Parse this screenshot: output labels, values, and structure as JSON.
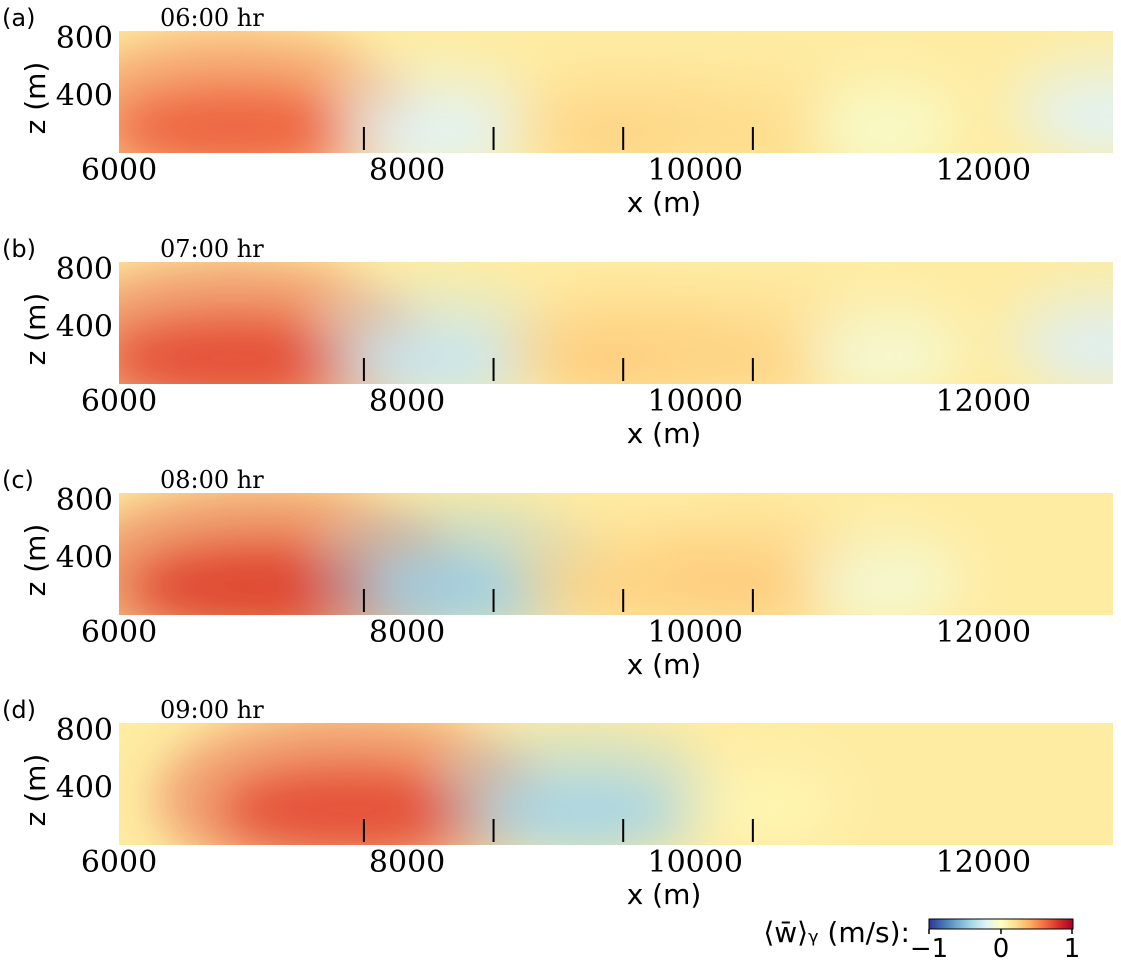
{
  "chart_data": [
    {
      "type": "heatmap",
      "panel": "(a)",
      "time": "06:00 hr",
      "xlabel": "x (m)",
      "ylabel": "z (m)",
      "xlim": [
        6000,
        12900
      ],
      "ylim": [
        0,
        850
      ],
      "xticks": [
        6000,
        8000,
        10000,
        12000
      ],
      "yticks": [
        400,
        800
      ],
      "markers_x": [
        7700,
        8600,
        9500,
        10400
      ],
      "features": [
        {
          "x": 6800,
          "z": 180,
          "w": 0.65
        },
        {
          "x": 8200,
          "z": 150,
          "w": -0.2
        },
        {
          "x": 9500,
          "z": 130,
          "w": 0.25
        },
        {
          "x": 10400,
          "z": 130,
          "w": 0.22
        },
        {
          "x": 11300,
          "z": 150,
          "w": -0.05
        },
        {
          "x": 12900,
          "z": 250,
          "w": -0.2
        }
      ]
    },
    {
      "type": "heatmap",
      "panel": "(b)",
      "time": "07:00 hr",
      "xlabel": "x (m)",
      "ylabel": "z (m)",
      "xlim": [
        6000,
        12900
      ],
      "ylim": [
        0,
        850
      ],
      "xticks": [
        6000,
        8000,
        10000,
        12000
      ],
      "yticks": [
        400,
        800
      ],
      "markers_x": [
        7700,
        8600,
        9500,
        10400
      ],
      "features": [
        {
          "x": 6800,
          "z": 180,
          "w": 0.72
        },
        {
          "x": 8200,
          "z": 180,
          "w": -0.3
        },
        {
          "x": 9500,
          "z": 180,
          "w": 0.28
        },
        {
          "x": 10400,
          "z": 180,
          "w": 0.25
        },
        {
          "x": 11300,
          "z": 180,
          "w": -0.08
        },
        {
          "x": 12900,
          "z": 250,
          "w": -0.22
        }
      ]
    },
    {
      "type": "heatmap",
      "panel": "(c)",
      "time": "08:00 hr",
      "xlabel": "x (m)",
      "ylabel": "z (m)",
      "xlim": [
        6000,
        12900
      ],
      "ylim": [
        0,
        850
      ],
      "xticks": [
        6000,
        8000,
        10000,
        12000
      ],
      "yticks": [
        400,
        800
      ],
      "markers_x": [
        7700,
        8600,
        9500,
        10400
      ],
      "features": [
        {
          "x": 7000,
          "z": 200,
          "w": 0.75
        },
        {
          "x": 8400,
          "z": 200,
          "w": -0.45
        },
        {
          "x": 9500,
          "z": 200,
          "w": 0.25
        },
        {
          "x": 10400,
          "z": 220,
          "w": 0.28
        },
        {
          "x": 11300,
          "z": 200,
          "w": -0.08
        }
      ]
    },
    {
      "type": "heatmap",
      "panel": "(d)",
      "time": "09:00 hr",
      "xlabel": "x (m)",
      "ylabel": "z (m)",
      "xlim": [
        6000,
        12900
      ],
      "ylim": [
        0,
        850
      ],
      "xticks": [
        6000,
        8000,
        10000,
        12000
      ],
      "yticks": [
        400,
        800
      ],
      "markers_x": [
        7700,
        8600,
        9500,
        10400
      ],
      "features": [
        {
          "x": 7600,
          "z": 250,
          "w": 0.72
        },
        {
          "x": 9200,
          "z": 250,
          "w": -0.42
        },
        {
          "x": 10500,
          "z": 250,
          "w": 0.05
        }
      ]
    }
  ],
  "colorbar": {
    "label": "⟨w̄⟩ᵧ (m/s):",
    "colormap": "RdYlBu_r",
    "min": -1,
    "max": 1,
    "ticks": [
      "−1",
      "0",
      "1"
    ],
    "colors": [
      "#313695",
      "#4575b4",
      "#74add1",
      "#abd9e9",
      "#e0f3f8",
      "#ffffbf",
      "#fee090",
      "#fdae61",
      "#f46d43",
      "#d73027",
      "#a50026"
    ]
  }
}
